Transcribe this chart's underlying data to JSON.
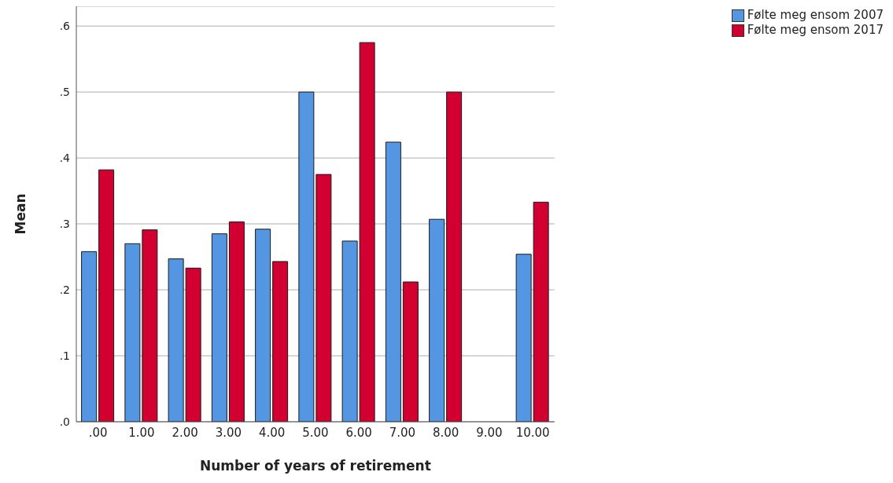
{
  "chart_data": {
    "type": "bar",
    "xlabel": "Number of years of retirement",
    "ylabel": "Mean",
    "categories": [
      ".00",
      "1.00",
      "2.00",
      "3.00",
      "4.00",
      "5.00",
      "6.00",
      "7.00",
      "8.00",
      "9.00",
      "10.00"
    ],
    "series": [
      {
        "name": "Følte meg ensom 2007",
        "color": "#5596e2",
        "values": [
          0.258,
          0.27,
          0.247,
          0.285,
          0.292,
          0.5,
          0.274,
          0.424,
          0.307,
          0,
          0.254
        ]
      },
      {
        "name": "Følte meg ensom 2017",
        "color": "#d20030",
        "values": [
          0.382,
          0.291,
          0.233,
          0.303,
          0.243,
          0.375,
          0.575,
          0.212,
          0.5,
          0,
          0.333
        ]
      }
    ],
    "ylim": [
      0,
      0.63
    ],
    "yticks": [
      {
        "value": 0,
        "label": ".0"
      },
      {
        "value": 0.1,
        "label": ".1"
      },
      {
        "value": 0.2,
        "label": ".2"
      },
      {
        "value": 0.3,
        "label": ".3"
      },
      {
        "value": 0.4,
        "label": ".4"
      },
      {
        "value": 0.5,
        "label": ".5"
      },
      {
        "value": 0.6,
        "label": ".6"
      }
    ],
    "grid": "y",
    "legend": "top right"
  }
}
